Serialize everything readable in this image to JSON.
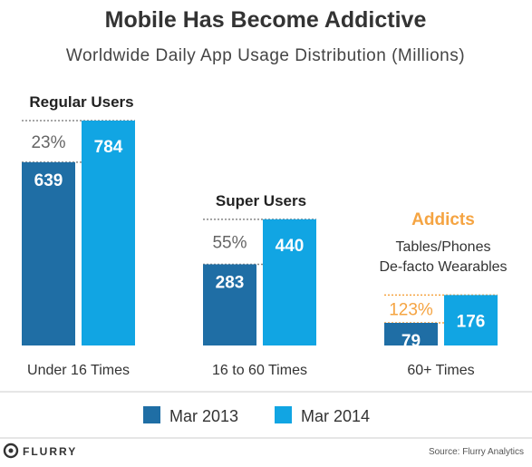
{
  "chart_data": {
    "type": "bar",
    "title": "Mobile Has Become Addictive",
    "subtitle": "Worldwide Daily App Usage Distribution (Millions)",
    "categories": [
      "Under 16 Times",
      "16 to 60 Times",
      "60+ Times"
    ],
    "groups": [
      {
        "heading": "Regular Users",
        "subheading": "",
        "growth": "23%"
      },
      {
        "heading": "Super Users",
        "subheading": "",
        "growth": "55%"
      },
      {
        "heading": "Addicts",
        "subheading": "Tables/Phones\nDe-facto Wearables",
        "growth": "123%"
      }
    ],
    "series": [
      {
        "name": "Mar 2013",
        "values": [
          639,
          283,
          79
        ]
      },
      {
        "name": "Mar 2014",
        "values": [
          784,
          440,
          176
        ]
      }
    ],
    "ylim": [
      0,
      840
    ],
    "grid": false,
    "legend": "bottom"
  },
  "colors": {
    "mar_2013": "#1f6ea5",
    "mar_2014": "#11a5e3",
    "accent": "#f5a442",
    "dotted": "#888888",
    "baseline": "#bbbbbb"
  },
  "footer": {
    "logo_text": "FLURRY",
    "logo_icon": "flurry-logo-icon",
    "source": "Source: Flurry Analytics"
  }
}
